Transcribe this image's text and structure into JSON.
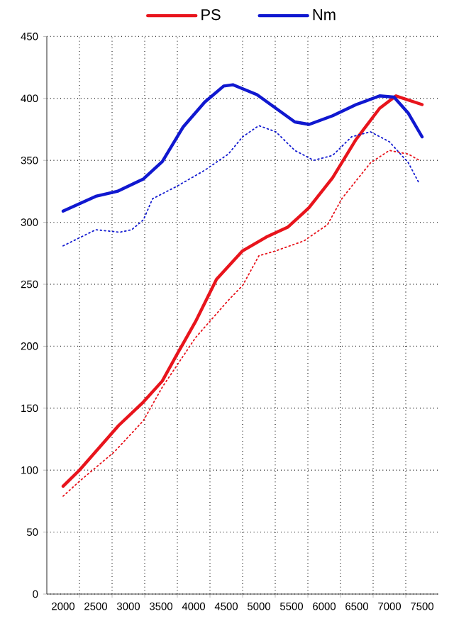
{
  "chart_data": {
    "type": "line",
    "xlim": [
      1750,
      7750
    ],
    "ylim": [
      0,
      450
    ],
    "xticks": [
      2000,
      2500,
      3000,
      3500,
      4000,
      4500,
      5000,
      5500,
      6000,
      6500,
      7000,
      7500
    ],
    "yticks": [
      0,
      50,
      100,
      150,
      200,
      250,
      300,
      350,
      400,
      450
    ],
    "grid": true,
    "legend": "top",
    "marker": "none",
    "series": [
      {
        "name": "PS",
        "color": "#e8141c",
        "line_style": "solid",
        "x": [
          2000,
          2250,
          2850,
          3230,
          3520,
          3740,
          4030,
          4350,
          4750,
          5110,
          5440,
          5690,
          5770,
          6130,
          6490,
          6850,
          7100,
          7500
        ],
        "values": [
          87,
          100,
          136,
          155,
          172,
          193,
          220,
          254,
          277,
          288,
          296,
          308,
          312,
          336,
          367,
          392,
          402,
          395
        ]
      },
      {
        "name": "Nm",
        "color": "#1018d0",
        "line_style": "solid",
        "x": [
          2000,
          2500,
          2830,
          3230,
          3520,
          3840,
          4170,
          4460,
          4600,
          4970,
          5260,
          5550,
          5770,
          6130,
          6490,
          6850,
          7070,
          7290,
          7500
        ],
        "values": [
          309,
          321,
          325,
          335,
          349,
          377,
          397,
          410,
          411,
          403,
          392,
          381,
          379,
          386,
          395,
          402,
          401,
          388,
          369
        ]
      },
      {
        "color": "#e8141c",
        "line_style": "dotted",
        "x": [
          2000,
          2250,
          2790,
          3230,
          3520,
          4030,
          4530,
          4750,
          5000,
          5260,
          5690,
          6050,
          6270,
          6420,
          6710,
          7000,
          7290,
          7460
        ],
        "values": [
          79,
          91,
          115,
          140,
          167,
          207,
          237,
          249,
          273,
          277,
          285,
          298,
          319,
          329,
          348,
          358,
          355,
          350
        ]
      },
      {
        "color": "#1018d0",
        "line_style": "dotted",
        "x": [
          2000,
          2500,
          2870,
          3050,
          3230,
          3370,
          3740,
          4170,
          4530,
          4750,
          5000,
          5260,
          5550,
          5840,
          6130,
          6420,
          6710,
          7000,
          7290,
          7460
        ],
        "values": [
          281,
          294,
          292,
          294,
          302,
          319,
          329,
          342,
          355,
          369,
          378,
          373,
          358,
          350,
          354,
          369,
          373,
          365,
          348,
          331
        ]
      }
    ]
  }
}
